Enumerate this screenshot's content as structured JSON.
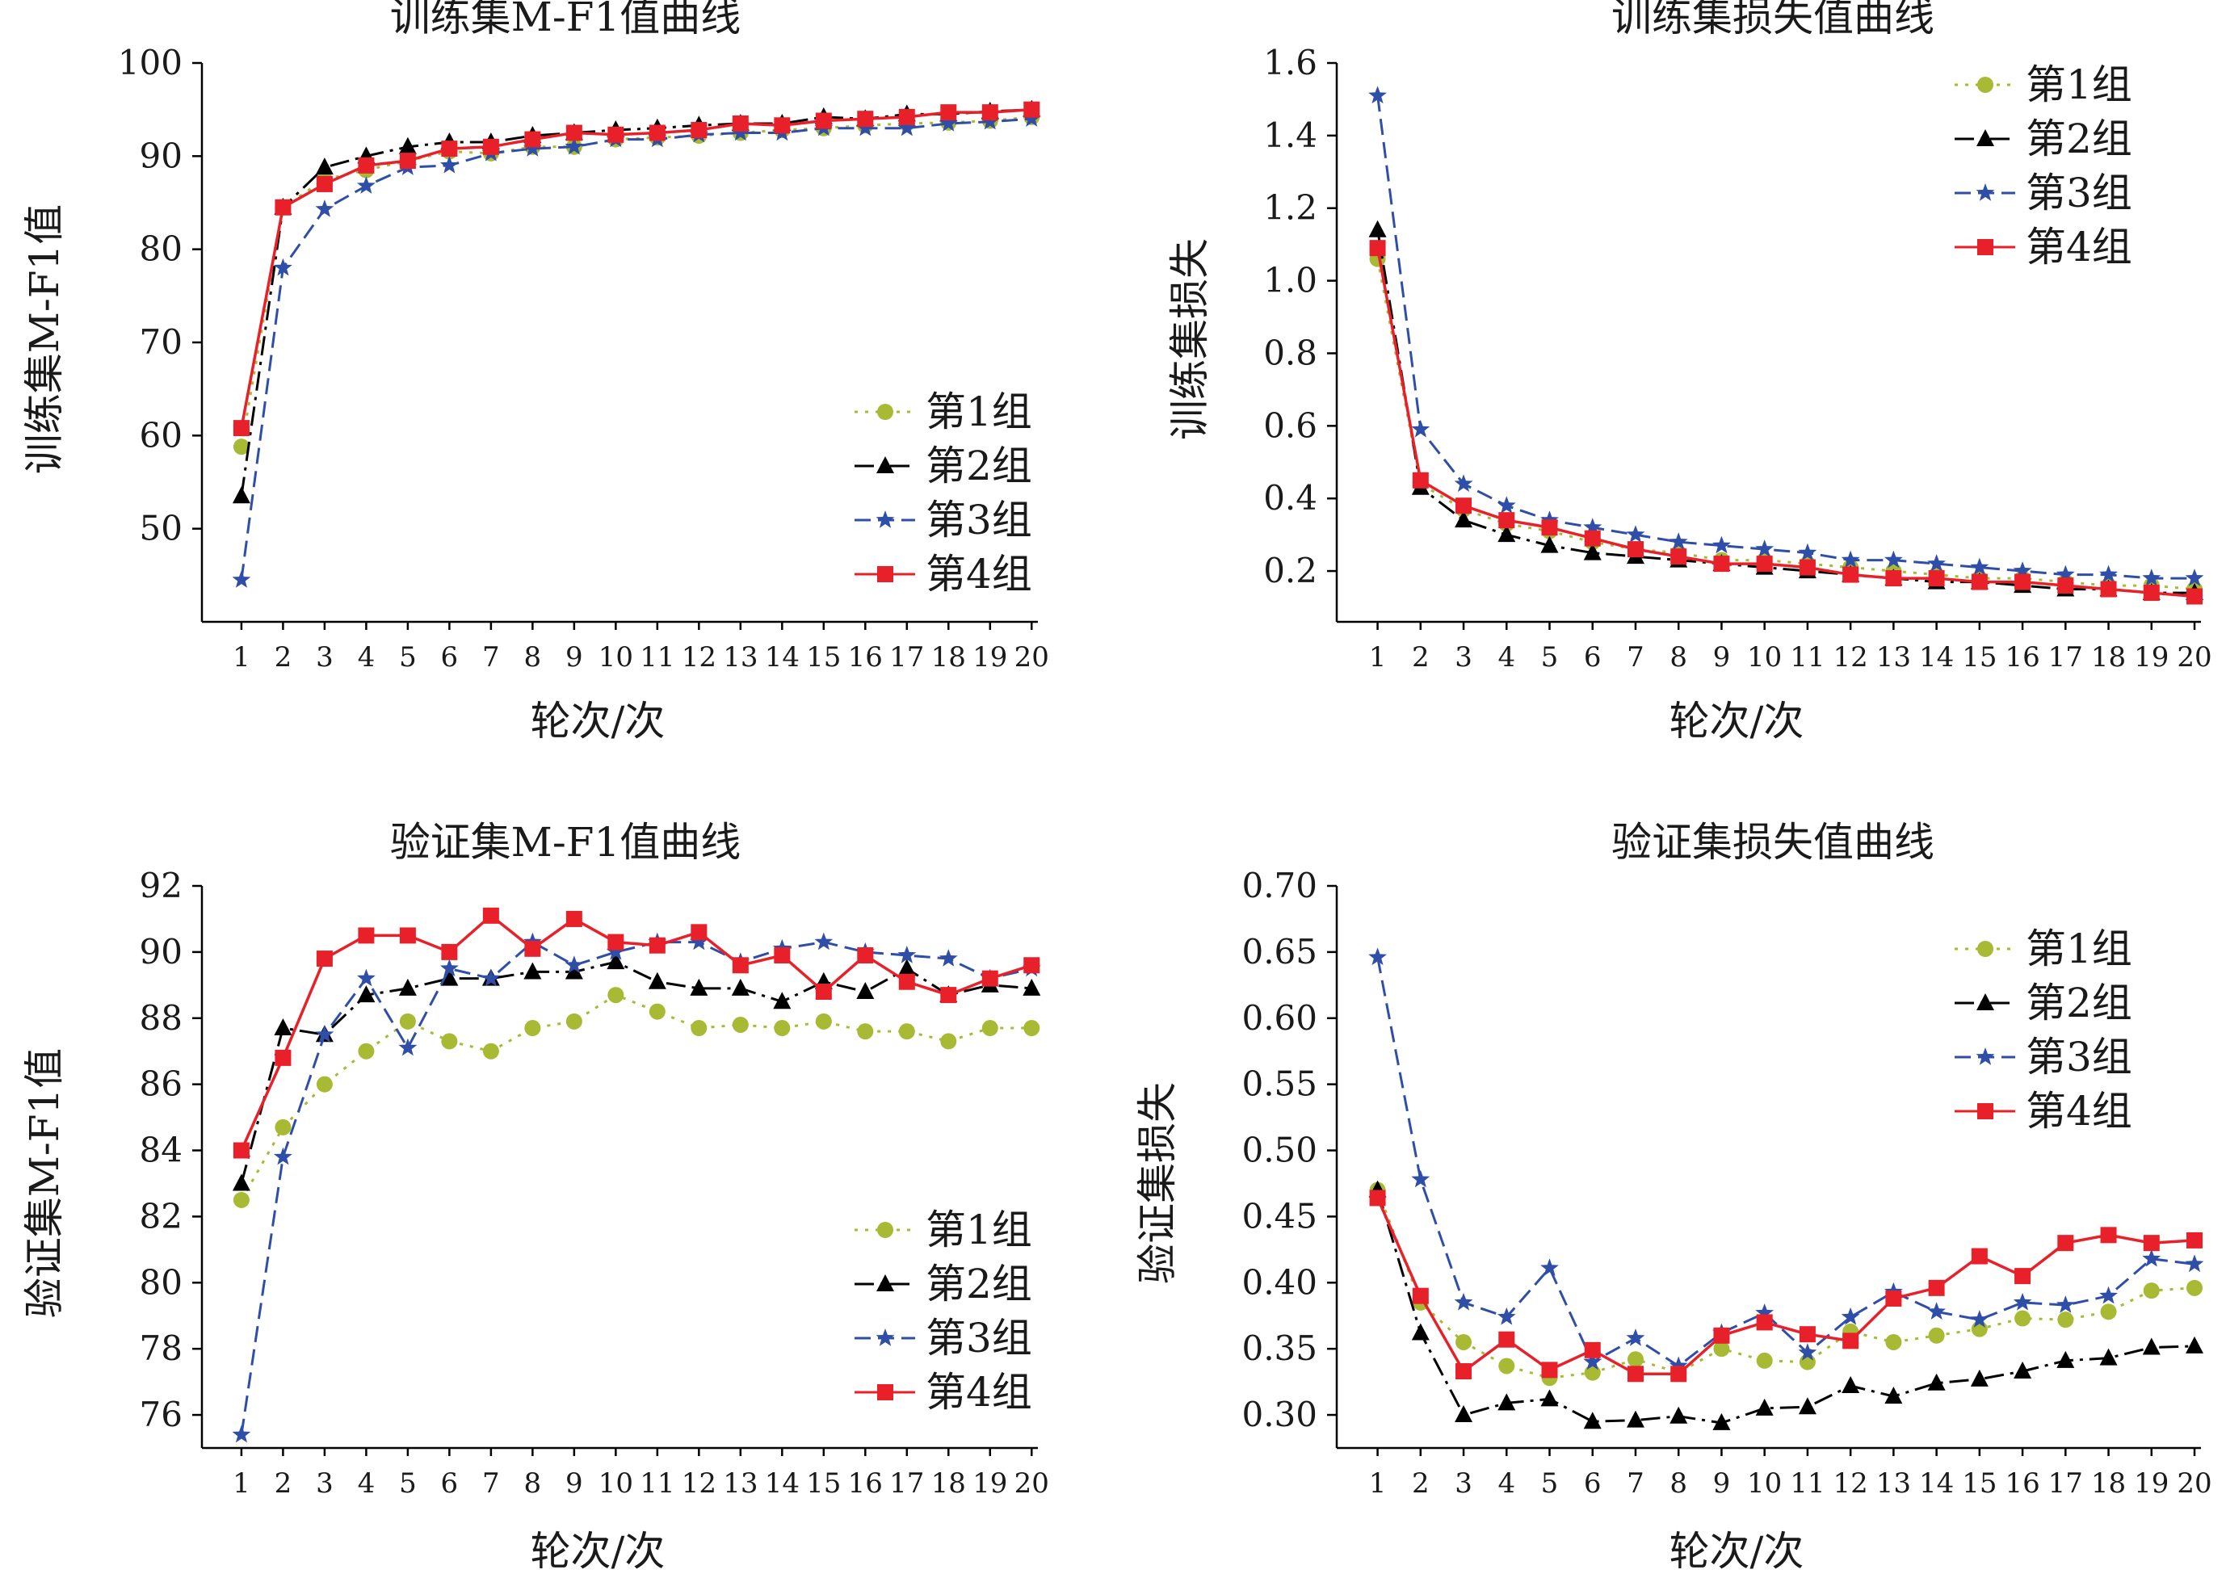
{
  "colors": {
    "axis": "#000000",
    "group1": "#a8b934",
    "group2": "#000000",
    "group3": "#2f4ea8",
    "group4": "#e8202a"
  },
  "markers": {
    "group1": "circle",
    "group2": "triangle",
    "group3": "star",
    "group4": "square"
  },
  "chart_data": [
    {
      "type": "line",
      "title": "训练集M-F1值曲线",
      "xlabel": "轮次/次",
      "ylabel": "训练集M-F1值",
      "x": [
        1,
        2,
        3,
        4,
        5,
        6,
        7,
        8,
        9,
        10,
        11,
        12,
        13,
        14,
        15,
        16,
        17,
        18,
        19,
        20
      ],
      "ylim": [
        40,
        100
      ],
      "yticks": [
        "50",
        "60",
        "70",
        "80",
        "90",
        "100"
      ],
      "legend_position": "lower-right",
      "series": [
        {
          "name": "第1组",
          "values": [
            58.8,
            84.5,
            87.5,
            88.5,
            89.5,
            90.5,
            90.3,
            91.0,
            91.0,
            91.8,
            92.0,
            92.2,
            92.5,
            92.8,
            93.0,
            93.3,
            93.5,
            93.6,
            93.8,
            94.2
          ]
        },
        {
          "name": "第2组",
          "values": [
            53.5,
            84.5,
            88.8,
            90.0,
            91.0,
            91.5,
            91.5,
            92.2,
            92.5,
            92.8,
            93.0,
            93.3,
            93.5,
            93.5,
            94.2,
            94.0,
            94.5,
            94.5,
            94.8,
            95.0
          ]
        },
        {
          "name": "第3组",
          "values": [
            44.5,
            78.0,
            84.3,
            86.8,
            88.8,
            89.0,
            90.3,
            90.8,
            91.0,
            91.8,
            91.8,
            92.3,
            92.5,
            92.5,
            93.0,
            93.0,
            93.0,
            93.5,
            93.7,
            94.0
          ]
        },
        {
          "name": "第4组",
          "values": [
            60.8,
            84.5,
            87.0,
            89.0,
            89.5,
            90.8,
            91.0,
            91.8,
            92.5,
            92.3,
            92.5,
            92.8,
            93.5,
            93.3,
            93.8,
            94.0,
            94.2,
            94.7,
            94.7,
            95.0
          ]
        }
      ]
    },
    {
      "type": "line",
      "title": "训练集损失值曲线",
      "xlabel": "轮次/次",
      "ylabel": "训练集损失",
      "x": [
        1,
        2,
        3,
        4,
        5,
        6,
        7,
        8,
        9,
        10,
        11,
        12,
        13,
        14,
        15,
        16,
        17,
        18,
        19,
        20
      ],
      "ylim": [
        0.06,
        1.6
      ],
      "yticks": [
        "0.2",
        "0.4",
        "0.6",
        "0.8",
        "1.0",
        "1.2",
        "1.4",
        "1.6"
      ],
      "legend_position": "top-right",
      "series": [
        {
          "name": "第1组",
          "values": [
            1.06,
            0.44,
            0.37,
            0.33,
            0.31,
            0.28,
            0.26,
            0.25,
            0.23,
            0.23,
            0.22,
            0.21,
            0.2,
            0.19,
            0.18,
            0.18,
            0.17,
            0.16,
            0.16,
            0.15
          ]
        },
        {
          "name": "第2组",
          "values": [
            1.14,
            0.43,
            0.34,
            0.3,
            0.27,
            0.25,
            0.24,
            0.23,
            0.22,
            0.21,
            0.2,
            0.19,
            0.18,
            0.17,
            0.17,
            0.16,
            0.15,
            0.15,
            0.14,
            0.14
          ]
        },
        {
          "name": "第3组",
          "values": [
            1.51,
            0.59,
            0.44,
            0.38,
            0.34,
            0.32,
            0.3,
            0.28,
            0.27,
            0.26,
            0.25,
            0.23,
            0.23,
            0.22,
            0.21,
            0.2,
            0.19,
            0.19,
            0.18,
            0.18
          ]
        },
        {
          "name": "第4组",
          "values": [
            1.09,
            0.45,
            0.38,
            0.34,
            0.32,
            0.29,
            0.26,
            0.24,
            0.22,
            0.22,
            0.21,
            0.19,
            0.18,
            0.18,
            0.17,
            0.17,
            0.16,
            0.15,
            0.14,
            0.13
          ]
        }
      ]
    },
    {
      "type": "line",
      "title": "验证集M-F1值曲线",
      "xlabel": "轮次/次",
      "ylabel": "验证集M-F1值",
      "x": [
        1,
        2,
        3,
        4,
        5,
        6,
        7,
        8,
        9,
        10,
        11,
        12,
        13,
        14,
        15,
        16,
        17,
        18,
        19,
        20
      ],
      "ylim": [
        75,
        92
      ],
      "yticks": [
        "76",
        "78",
        "80",
        "82",
        "84",
        "86",
        "88",
        "90",
        "92"
      ],
      "legend_position": "lower-right",
      "series": [
        {
          "name": "第1组",
          "values": [
            82.5,
            84.7,
            86.0,
            87.0,
            87.9,
            87.3,
            87.0,
            87.7,
            87.9,
            88.7,
            88.2,
            87.7,
            87.8,
            87.7,
            87.9,
            87.6,
            87.6,
            87.3,
            87.7,
            87.7
          ]
        },
        {
          "name": "第2组",
          "values": [
            83.0,
            87.7,
            87.5,
            88.7,
            88.9,
            89.2,
            89.2,
            89.4,
            89.4,
            89.7,
            89.1,
            88.9,
            88.9,
            88.5,
            89.1,
            88.8,
            89.5,
            88.7,
            89.0,
            88.9
          ]
        },
        {
          "name": "第3组",
          "values": [
            75.4,
            83.8,
            87.5,
            89.2,
            87.1,
            89.5,
            89.2,
            90.3,
            89.6,
            90.0,
            90.3,
            90.3,
            89.7,
            90.1,
            90.3,
            90.0,
            89.9,
            89.8,
            89.2,
            89.5
          ]
        },
        {
          "name": "第4组",
          "values": [
            84.0,
            86.8,
            89.8,
            90.5,
            90.5,
            90.0,
            91.1,
            90.1,
            91.0,
            90.3,
            90.2,
            90.6,
            89.6,
            89.9,
            88.8,
            89.9,
            89.1,
            88.7,
            89.2,
            89.6
          ]
        }
      ]
    },
    {
      "type": "line",
      "title": "验证集损失值曲线",
      "xlabel": "轮次/次",
      "ylabel": "验证集损失",
      "x": [
        1,
        2,
        3,
        4,
        5,
        6,
        7,
        8,
        9,
        10,
        11,
        12,
        13,
        14,
        15,
        16,
        17,
        18,
        19,
        20
      ],
      "ylim": [
        0.275,
        0.7
      ],
      "yticks": [
        "0.30",
        "0.35",
        "0.40",
        "0.45",
        "0.50",
        "0.55",
        "0.60",
        "0.65",
        "0.70"
      ],
      "legend_position": "top-right",
      "series": [
        {
          "name": "第1组",
          "values": [
            0.47,
            0.385,
            0.355,
            0.337,
            0.328,
            0.332,
            0.342,
            0.332,
            0.35,
            0.341,
            0.34,
            0.363,
            0.355,
            0.36,
            0.365,
            0.373,
            0.372,
            0.378,
            0.394,
            0.396
          ]
        },
        {
          "name": "第2组",
          "values": [
            0.47,
            0.362,
            0.3,
            0.309,
            0.312,
            0.295,
            0.296,
            0.299,
            0.294,
            0.305,
            0.306,
            0.322,
            0.314,
            0.324,
            0.327,
            0.333,
            0.341,
            0.343,
            0.351,
            0.352
          ]
        },
        {
          "name": "第3组",
          "values": [
            0.646,
            0.478,
            0.385,
            0.374,
            0.411,
            0.34,
            0.358,
            0.337,
            0.362,
            0.377,
            0.347,
            0.374,
            0.393,
            0.378,
            0.372,
            0.385,
            0.383,
            0.39,
            0.418,
            0.414
          ]
        },
        {
          "name": "第4组",
          "values": [
            0.464,
            0.39,
            0.333,
            0.357,
            0.334,
            0.349,
            0.331,
            0.331,
            0.36,
            0.37,
            0.361,
            0.356,
            0.388,
            0.396,
            0.42,
            0.405,
            0.43,
            0.436,
            0.43,
            0.432
          ]
        }
      ]
    }
  ]
}
